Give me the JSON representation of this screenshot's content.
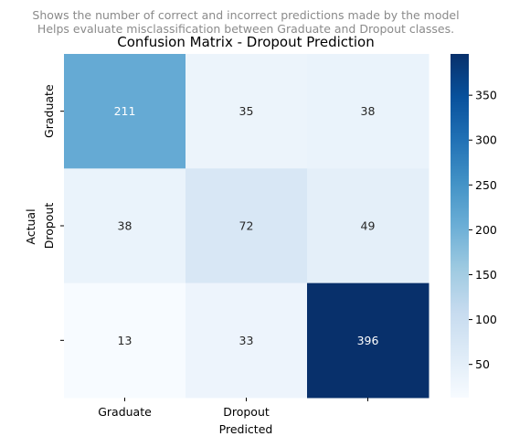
{
  "chart_data": {
    "type": "heatmap",
    "subtitle_lines": [
      "Shows the number of correct and incorrect predictions made by the model",
      "Helps evaluate misclassification between Graduate and Dropout classes."
    ],
    "title": "Confusion Matrix - Dropout Prediction",
    "xlabel": "Predicted",
    "ylabel": "Actual",
    "x_tick_labels": [
      "Graduate",
      "Dropout",
      ""
    ],
    "y_tick_labels": [
      "Graduate",
      "Dropout",
      ""
    ],
    "values": [
      [
        211,
        35,
        38
      ],
      [
        38,
        72,
        49
      ],
      [
        13,
        33,
        396
      ]
    ],
    "colormap": "Blues",
    "colorbar": {
      "min": 13,
      "max": 396,
      "ticks": [
        50,
        100,
        150,
        200,
        250,
        300,
        350
      ]
    }
  }
}
